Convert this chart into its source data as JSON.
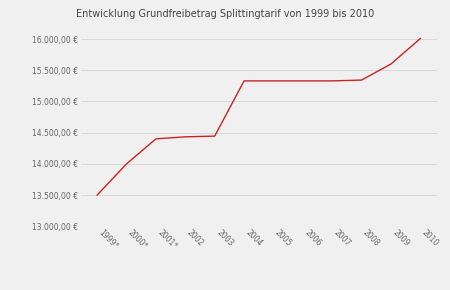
{
  "title": "Entwicklung Grundfreibetrag Splittingtarif von 1999 bis 2010",
  "years": [
    "1999*",
    "2000*",
    "2001*",
    "2002",
    "2003",
    "2004",
    "2005",
    "2006",
    "2007",
    "2008",
    "2009",
    "2010"
  ],
  "values": [
    13499,
    13999,
    14400,
    14432,
    14444,
    15329,
    15329,
    15329,
    15329,
    15342,
    15600,
    16008
  ],
  "line_color": "#cc2222",
  "bg_color": "#f0f0f0",
  "ylim": [
    13000,
    16300
  ],
  "yticks": [
    13000,
    13500,
    14000,
    14500,
    15000,
    15500,
    16000
  ],
  "grid_color": "#d0d0d0",
  "title_fontsize": 7,
  "tick_fontsize": 5.5
}
